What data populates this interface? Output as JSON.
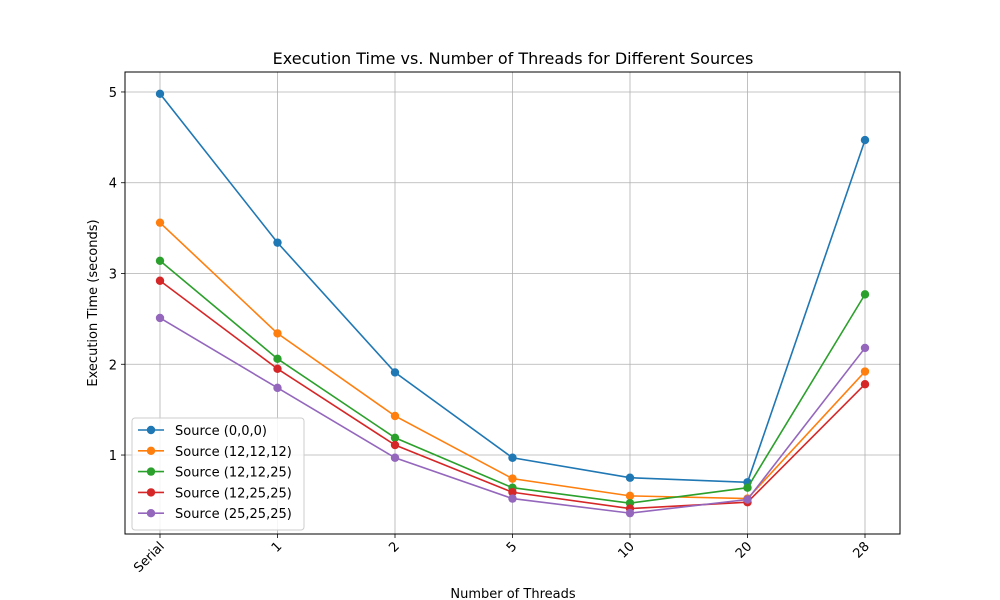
{
  "chart_data": {
    "type": "line",
    "title": "Execution Time vs. Number of Threads for Different Sources",
    "xlabel": "Number of Threads",
    "ylabel": "Execution Time (seconds)",
    "categories": [
      "Serial",
      "1",
      "2",
      "5",
      "10",
      "20",
      "28"
    ],
    "ylim": [
      0.13,
      5.22
    ],
    "yticks": [
      1,
      2,
      3,
      4,
      5
    ],
    "grid": true,
    "legend_position": "lower-left",
    "series": [
      {
        "name": "Source (0,0,0)",
        "color": "#1f77b4",
        "values": [
          4.98,
          3.34,
          1.91,
          0.97,
          0.75,
          0.7,
          4.47
        ]
      },
      {
        "name": "Source (12,12,12)",
        "color": "#ff7f0e",
        "values": [
          3.56,
          2.34,
          1.43,
          0.74,
          0.55,
          0.52,
          1.92
        ]
      },
      {
        "name": "Source (12,12,25)",
        "color": "#2ca02c",
        "values": [
          3.14,
          2.06,
          1.19,
          0.64,
          0.47,
          0.64,
          2.77
        ]
      },
      {
        "name": "Source (12,25,25)",
        "color": "#d62728",
        "values": [
          2.92,
          1.95,
          1.11,
          0.59,
          0.41,
          0.48,
          1.78
        ]
      },
      {
        "name": "Source (25,25,25)",
        "color": "#9467bd",
        "values": [
          2.51,
          1.74,
          0.97,
          0.52,
          0.36,
          0.51,
          2.18
        ]
      }
    ]
  }
}
